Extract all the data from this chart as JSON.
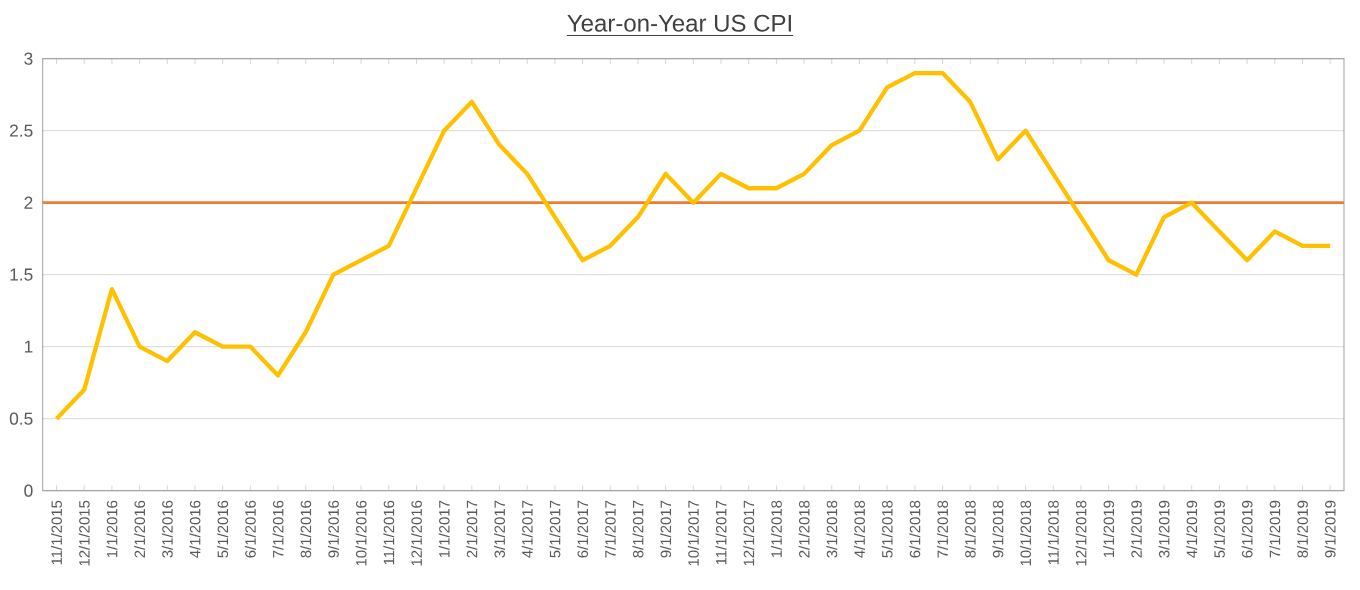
{
  "chart_data": {
    "type": "line",
    "title": "Year-on-Year US CPI",
    "categories": [
      "11/1/2015",
      "12/1/2015",
      "1/1/2016",
      "2/1/2016",
      "3/1/2016",
      "4/1/2016",
      "5/1/2016",
      "6/1/2016",
      "7/1/2016",
      "8/1/2016",
      "9/1/2016",
      "10/1/2016",
      "11/1/2016",
      "12/1/2016",
      "1/1/2017",
      "2/1/2017",
      "3/1/2017",
      "4/1/2017",
      "5/1/2017",
      "6/1/2017",
      "7/1/2017",
      "8/1/2017",
      "9/1/2017",
      "10/1/2017",
      "11/1/2017",
      "12/1/2017",
      "1/1/2018",
      "2/1/2018",
      "3/1/2018",
      "4/1/2018",
      "5/1/2018",
      "6/1/2018",
      "7/1/2018",
      "8/1/2018",
      "9/1/2018",
      "10/1/2018",
      "11/1/2018",
      "12/1/2018",
      "1/1/2019",
      "2/1/2019",
      "3/1/2019",
      "4/1/2019",
      "5/1/2019",
      "6/1/2019",
      "7/1/2019",
      "8/1/2019",
      "9/1/2019"
    ],
    "series": [
      {
        "color": "#ffc000",
        "values": [
          0.5,
          0.7,
          1.4,
          1.0,
          0.9,
          1.1,
          1.0,
          1.0,
          0.8,
          1.1,
          1.5,
          1.6,
          1.7,
          2.1,
          2.5,
          2.7,
          2.4,
          2.2,
          1.9,
          1.6,
          1.7,
          1.9,
          2.2,
          2.0,
          2.2,
          2.1,
          2.1,
          2.2,
          2.4,
          2.5,
          2.8,
          2.9,
          2.9,
          2.7,
          2.3,
          2.5,
          2.2,
          1.9,
          1.6,
          1.5,
          1.9,
          2.0,
          1.8,
          1.6,
          1.8,
          1.7,
          1.7
        ]
      }
    ],
    "ref_lines": [
      {
        "axis": "y",
        "value": 2,
        "color": "#ed7d31"
      }
    ],
    "ylim": [
      0,
      3
    ],
    "yticks": [
      0,
      0.5,
      1,
      1.5,
      2,
      2.5,
      3
    ],
    "grid": "y",
    "marker": "none",
    "line_style": "solid"
  }
}
